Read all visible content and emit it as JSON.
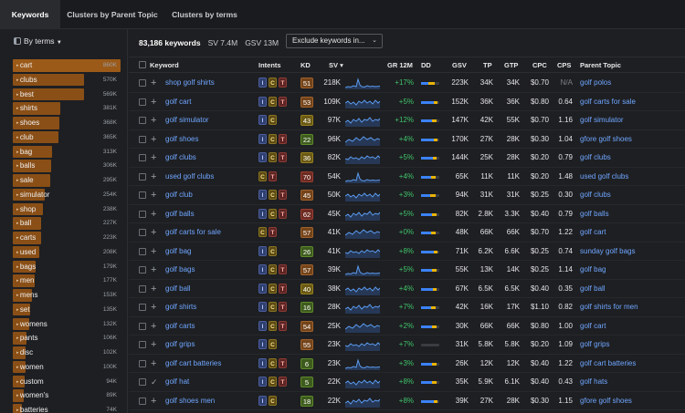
{
  "tabs": [
    "Keywords",
    "Clusters by Parent Topic",
    "Clusters by terms"
  ],
  "sidebar": {
    "header": "By terms",
    "items": [
      {
        "term": "cart",
        "volume": "860K",
        "n": 860
      },
      {
        "term": "clubs",
        "volume": "570K",
        "n": 570
      },
      {
        "term": "best",
        "volume": "569K",
        "n": 569
      },
      {
        "term": "shirts",
        "volume": "381K",
        "n": 381
      },
      {
        "term": "shoes",
        "volume": "368K",
        "n": 368
      },
      {
        "term": "club",
        "volume": "365K",
        "n": 365
      },
      {
        "term": "bag",
        "volume": "313K",
        "n": 313
      },
      {
        "term": "balls",
        "volume": "306K",
        "n": 306
      },
      {
        "term": "sale",
        "volume": "295K",
        "n": 295
      },
      {
        "term": "simulator",
        "volume": "254K",
        "n": 254
      },
      {
        "term": "shop",
        "volume": "238K",
        "n": 238
      },
      {
        "term": "ball",
        "volume": "227K",
        "n": 227
      },
      {
        "term": "carts",
        "volume": "223K",
        "n": 223
      },
      {
        "term": "used",
        "volume": "208K",
        "n": 208
      },
      {
        "term": "bags",
        "volume": "179K",
        "n": 179
      },
      {
        "term": "men",
        "volume": "177K",
        "n": 177
      },
      {
        "term": "mens",
        "volume": "153K",
        "n": 153
      },
      {
        "term": "set",
        "volume": "135K",
        "n": 135
      },
      {
        "term": "womens",
        "volume": "132K",
        "n": 132
      },
      {
        "term": "pants",
        "volume": "106K",
        "n": 106
      },
      {
        "term": "disc",
        "volume": "102K",
        "n": 102
      },
      {
        "term": "women",
        "volume": "100K",
        "n": 100
      },
      {
        "term": "custom",
        "volume": "94K",
        "n": 94
      },
      {
        "term": "women's",
        "volume": "89K",
        "n": 89
      },
      {
        "term": "batteries",
        "volume": "74K",
        "n": 74
      }
    ]
  },
  "summary": {
    "keyword_count": "83,186 keywords",
    "sv": "SV 7.4M",
    "gsv": "GSV 13M",
    "exclude_label": "Exclude keywords in..."
  },
  "columns": {
    "keyword": "Keyword",
    "intents": "Intents",
    "kd": "KD",
    "sv": "SV ▾",
    "gr": "GR 12M",
    "dd": "DD",
    "gsv": "GSV",
    "tp": "TP",
    "gtp": "GTP",
    "cpc": "CPC",
    "cps": "CPS",
    "parent": "Parent Topic"
  },
  "rows": [
    {
      "kw": "shop golf shirts",
      "int": [
        "I",
        "C",
        "T"
      ],
      "kd": "51",
      "kdc": "o",
      "sv": "218K",
      "gr": "+17%",
      "dd": 0.4,
      "gsv": "223K",
      "tp": "34K",
      "gtp": "34K",
      "cpc": "$0.70",
      "cps": "N/A",
      "pt": "golf polos",
      "mark": "+"
    },
    {
      "kw": "golf cart",
      "int": [
        "I",
        "C",
        "T"
      ],
      "kd": "53",
      "kdc": "o",
      "sv": "109K",
      "gr": "+5%",
      "dd": 0.7,
      "gsv": "152K",
      "tp": "36K",
      "gtp": "36K",
      "cpc": "$0.80",
      "cps": "0.64",
      "pt": "golf carts for sale",
      "mark": "+"
    },
    {
      "kw": "golf simulator",
      "int": [
        "I",
        "C"
      ],
      "kd": "43",
      "kdc": "y",
      "sv": "97K",
      "gr": "+12%",
      "dd": 0.6,
      "gsv": "147K",
      "tp": "42K",
      "gtp": "55K",
      "cpc": "$0.70",
      "cps": "1.16",
      "pt": "golf simulator",
      "mark": "+"
    },
    {
      "kw": "golf shoes",
      "int": [
        "I",
        "C",
        "T"
      ],
      "kd": "22",
      "kdc": "g",
      "sv": "96K",
      "gr": "+4%",
      "dd": 0.7,
      "gsv": "170K",
      "tp": "27K",
      "gtp": "28K",
      "cpc": "$0.30",
      "cps": "1.04",
      "pt": "gfore golf shoes",
      "mark": "+"
    },
    {
      "kw": "golf clubs",
      "int": [
        "I",
        "C",
        "T"
      ],
      "kd": "36",
      "kdc": "y",
      "sv": "82K",
      "gr": "+5%",
      "dd": 0.65,
      "gsv": "144K",
      "tp": "25K",
      "gtp": "28K",
      "cpc": "$0.20",
      "cps": "0.79",
      "pt": "golf clubs",
      "mark": "+"
    },
    {
      "kw": "used golf clubs",
      "int": [
        "C",
        "T"
      ],
      "kd": "70",
      "kdc": "r",
      "sv": "54K",
      "gr": "+4%",
      "dd": 0.55,
      "gsv": "65K",
      "tp": "11K",
      "gtp": "11K",
      "cpc": "$0.20",
      "cps": "1.48",
      "pt": "used golf clubs",
      "mark": "+"
    },
    {
      "kw": "golf club",
      "int": [
        "I",
        "C",
        "T"
      ],
      "kd": "45",
      "kdc": "o",
      "sv": "50K",
      "gr": "+3%",
      "dd": 0.5,
      "gsv": "94K",
      "tp": "31K",
      "gtp": "31K",
      "cpc": "$0.25",
      "cps": "0.30",
      "pt": "golf clubs",
      "mark": "+"
    },
    {
      "kw": "golf balls",
      "int": [
        "I",
        "C",
        "T"
      ],
      "kd": "62",
      "kdc": "r",
      "sv": "45K",
      "gr": "+5%",
      "dd": 0.6,
      "gsv": "82K",
      "tp": "2.8K",
      "gtp": "3.3K",
      "cpc": "$0.40",
      "cps": "0.79",
      "pt": "golf balls",
      "mark": "+"
    },
    {
      "kw": "golf carts for sale",
      "int": [
        "C",
        "T"
      ],
      "kd": "57",
      "kdc": "o",
      "sv": "41K",
      "gr": "+0%",
      "dd": 0.55,
      "gsv": "48K",
      "tp": "66K",
      "gtp": "66K",
      "cpc": "$0.70",
      "cps": "1.22",
      "pt": "golf cart",
      "mark": "+"
    },
    {
      "kw": "golf bag",
      "int": [
        "I",
        "C"
      ],
      "kd": "26",
      "kdc": "g",
      "sv": "41K",
      "gr": "+8%",
      "dd": 0.7,
      "gsv": "71K",
      "tp": "6.2K",
      "gtp": "6.6K",
      "cpc": "$0.25",
      "cps": "0.74",
      "pt": "sunday golf bags",
      "mark": "+"
    },
    {
      "kw": "golf bags",
      "int": [
        "I",
        "C",
        "T"
      ],
      "kd": "57",
      "kdc": "o",
      "sv": "39K",
      "gr": "+5%",
      "dd": 0.6,
      "gsv": "55K",
      "tp": "13K",
      "gtp": "14K",
      "cpc": "$0.25",
      "cps": "1.14",
      "pt": "golf bag",
      "mark": "+"
    },
    {
      "kw": "golf ball",
      "int": [
        "I",
        "C",
        "T"
      ],
      "kd": "40",
      "kdc": "y",
      "sv": "38K",
      "gr": "+4%",
      "dd": 0.65,
      "gsv": "67K",
      "tp": "6.5K",
      "gtp": "6.5K",
      "cpc": "$0.40",
      "cps": "0.35",
      "pt": "golf ball",
      "mark": "+"
    },
    {
      "kw": "golf shirts",
      "int": [
        "I",
        "C",
        "T"
      ],
      "kd": "16",
      "kdc": "g",
      "sv": "28K",
      "gr": "+7%",
      "dd": 0.55,
      "gsv": "42K",
      "tp": "16K",
      "gtp": "17K",
      "cpc": "$1.10",
      "cps": "0.82",
      "pt": "golf shirts for men",
      "mark": "+"
    },
    {
      "kw": "golf carts",
      "int": [
        "I",
        "C",
        "T"
      ],
      "kd": "54",
      "kdc": "o",
      "sv": "25K",
      "gr": "+2%",
      "dd": 0.6,
      "gsv": "30K",
      "tp": "66K",
      "gtp": "66K",
      "cpc": "$0.80",
      "cps": "1.00",
      "pt": "golf cart",
      "mark": "+"
    },
    {
      "kw": "golf grips",
      "int": [
        "I",
        "C"
      ],
      "kd": "55",
      "kdc": "o",
      "sv": "23K",
      "gr": "+7%",
      "dd": 0,
      "gsv": "31K",
      "tp": "5.8K",
      "gtp": "5.8K",
      "cpc": "$0.20",
      "cps": "1.09",
      "pt": "golf grips",
      "mark": "+"
    },
    {
      "kw": "golf cart batteries",
      "int": [
        "I",
        "C",
        "T"
      ],
      "kd": "6",
      "kdc": "g",
      "sv": "23K",
      "gr": "+3%",
      "dd": 0.6,
      "gsv": "26K",
      "tp": "12K",
      "gtp": "12K",
      "cpc": "$0.40",
      "cps": "1.22",
      "pt": "golf cart batteries",
      "mark": "+"
    },
    {
      "kw": "golf hat",
      "int": [
        "I",
        "C",
        "T"
      ],
      "kd": "5",
      "kdc": "g",
      "sv": "22K",
      "gr": "+8%",
      "dd": 0.6,
      "gsv": "35K",
      "tp": "5.9K",
      "gtp": "6.1K",
      "cpc": "$0.40",
      "cps": "0.43",
      "pt": "golf hats",
      "mark": "✓"
    },
    {
      "kw": "golf shoes men",
      "int": [
        "I",
        "C"
      ],
      "kd": "18",
      "kdc": "g",
      "sv": "22K",
      "gr": "+8%",
      "dd": 0.7,
      "gsv": "39K",
      "tp": "27K",
      "gtp": "28K",
      "cpc": "$0.30",
      "cps": "1.15",
      "pt": "gfore golf shoes",
      "mark": "+"
    }
  ],
  "colors": {
    "accent": "#8a4f16",
    "link": "#6fa6ff",
    "growth": "#3fc36b"
  }
}
